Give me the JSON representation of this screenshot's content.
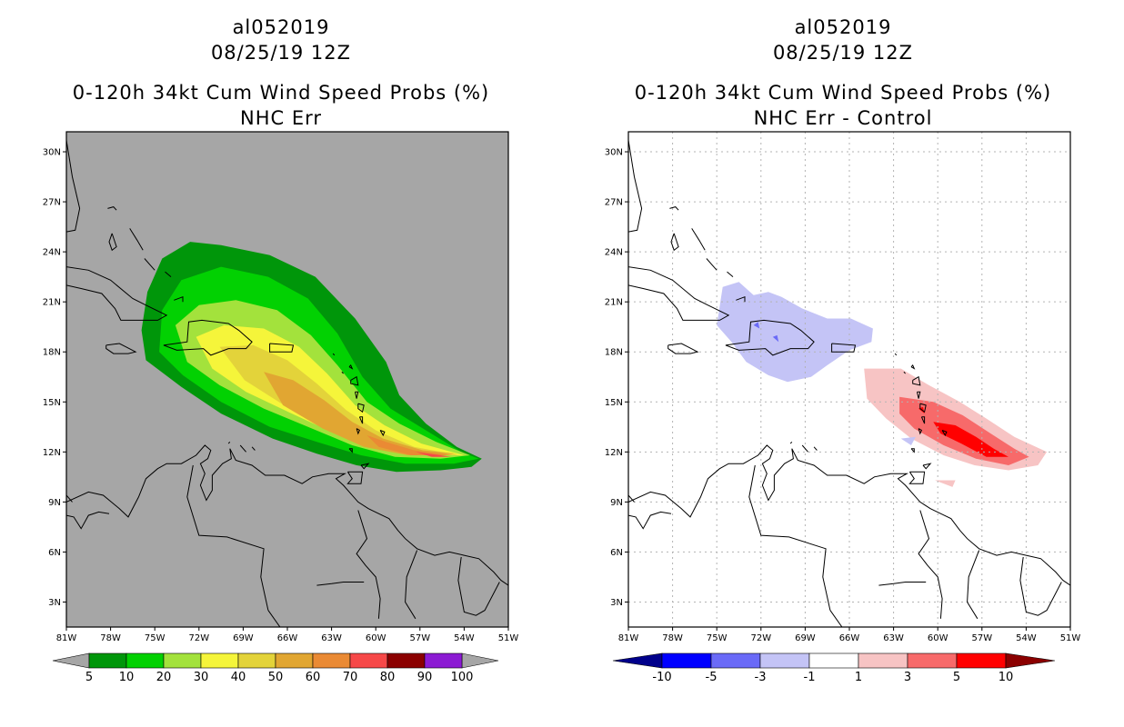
{
  "left_panel": {
    "storm_id": "al052019",
    "datetime": "08/25/19 12Z",
    "product": "0-120h 34kt Cum Wind Speed Probs (%)",
    "subtitle": "NHC Err",
    "background": "#a6a6a6",
    "colorbar": {
      "labels": [
        "5",
        "10",
        "20",
        "30",
        "40",
        "50",
        "60",
        "70",
        "80",
        "90",
        "100"
      ],
      "colors": [
        "#00960a",
        "#02d102",
        "#a3e23c",
        "#f5f53a",
        "#e3d33a",
        "#e1a632",
        "#ea8a34",
        "#f64848",
        "#8b0000",
        "#8c1bd3"
      ]
    }
  },
  "right_panel": {
    "storm_id": "al052019",
    "datetime": "08/25/19 12Z",
    "product": "0-120h 34kt Cum Wind Speed Probs (%)",
    "subtitle": "NHC Err - Control",
    "background": "#ffffff",
    "colorbar": {
      "labels": [
        "-10",
        "-5",
        "-3",
        "-1",
        "1",
        "3",
        "5",
        "10"
      ],
      "colors": [
        "#00008b",
        "#0000ff",
        "#6a6af7",
        "#c4c4f6",
        "#ffffff",
        "#f7c4c4",
        "#f76a6a",
        "#ff0000",
        "#8b0000"
      ]
    }
  },
  "axes": {
    "lon_ticks": [
      "81W",
      "78W",
      "75W",
      "72W",
      "69W",
      "66W",
      "63W",
      "60W",
      "57W",
      "54W",
      "51W"
    ],
    "lat_ticks": [
      "30N",
      "27N",
      "24N",
      "21N",
      "18N",
      "15N",
      "12N",
      "9N",
      "6N",
      "3N"
    ]
  }
}
